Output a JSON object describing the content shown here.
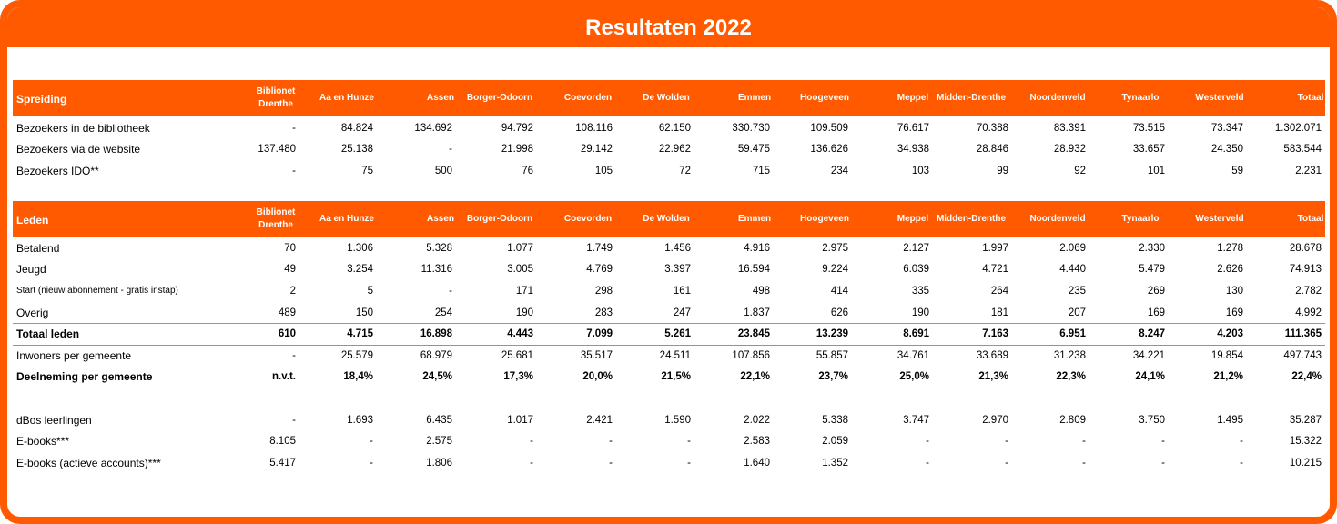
{
  "title": "Resultaten 2022",
  "table": {
    "columns": [
      "Biblionet\nDrenthe",
      "Aa en Hunze",
      "Assen",
      "Borger-Odoorn",
      "Coevorden",
      "De Wolden",
      "Emmen",
      "Hoogeveen",
      "Meppel",
      "Midden-Drenthe",
      "Noordenveld",
      "Tynaarlo",
      "Westerveld",
      "Totaal"
    ],
    "sections": [
      {
        "header": "Spreiding",
        "rows": [
          {
            "label": "Bezoekers in de bibliotheek",
            "values": [
              "-",
              "84.824",
              "134.692",
              "94.792",
              "108.116",
              "62.150",
              "330.730",
              "109.509",
              "76.617",
              "70.388",
              "83.391",
              "73.515",
              "73.347",
              "1.302.071"
            ]
          },
          {
            "label": "Bezoekers via de website",
            "values": [
              "137.480",
              "25.138",
              "-",
              "21.998",
              "29.142",
              "22.962",
              "59.475",
              "136.626",
              "34.938",
              "28.846",
              "28.932",
              "33.657",
              "24.350",
              "583.544"
            ]
          },
          {
            "label": "Bezoekers IDO**",
            "values": [
              "-",
              "75",
              "500",
              "76",
              "105",
              "72",
              "715",
              "234",
              "103",
              "99",
              "92",
              "101",
              "59",
              "2.231"
            ]
          }
        ]
      },
      {
        "header": "Leden",
        "rows": [
          {
            "label": "Betalend",
            "values": [
              "70",
              "1.306",
              "5.328",
              "1.077",
              "1.749",
              "1.456",
              "4.916",
              "2.975",
              "2.127",
              "1.997",
              "2.069",
              "2.330",
              "1.278",
              "28.678"
            ]
          },
          {
            "label": "Jeugd",
            "values": [
              "49",
              "3.254",
              "11.316",
              "3.005",
              "4.769",
              "3.397",
              "16.594",
              "9.224",
              "6.039",
              "4.721",
              "4.440",
              "5.479",
              "2.626",
              "74.913"
            ]
          },
          {
            "label": "Start (nieuw abonnement - gratis instap)",
            "small": true,
            "values": [
              "2",
              "5",
              "-",
              "171",
              "298",
              "161",
              "498",
              "414",
              "335",
              "264",
              "235",
              "269",
              "130",
              "2.782"
            ]
          },
          {
            "label": "Overig",
            "values": [
              "489",
              "150",
              "254",
              "190",
              "283",
              "247",
              "1.837",
              "626",
              "190",
              "181",
              "207",
              "169",
              "169",
              "4.992"
            ]
          },
          {
            "label": "Totaal leden",
            "bold": true,
            "values": [
              "610",
              "4.715",
              "16.898",
              "4.443",
              "7.099",
              "5.261",
              "23.845",
              "13.239",
              "8.691",
              "7.163",
              "6.951",
              "8.247",
              "4.203",
              "111.365"
            ]
          },
          {
            "label": "Inwoners per gemeente",
            "values": [
              "-",
              "25.579",
              "68.979",
              "25.681",
              "35.517",
              "24.511",
              "107.856",
              "55.857",
              "34.761",
              "33.689",
              "31.238",
              "34.221",
              "19.854",
              "497.743"
            ]
          },
          {
            "label": "Deelneming per gemeente",
            "bold": true,
            "values": [
              "n.v.t.",
              "18,4%",
              "24,5%",
              "17,3%",
              "20,0%",
              "21,5%",
              "22,1%",
              "23,7%",
              "25,0%",
              "21,3%",
              "22,3%",
              "24,1%",
              "21,2%",
              "22,4%"
            ]
          }
        ]
      },
      {
        "rows": [
          {
            "label": "dBos leerlingen",
            "values": [
              "-",
              "1.693",
              "6.435",
              "1.017",
              "2.421",
              "1.590",
              "2.022",
              "5.338",
              "3.747",
              "2.970",
              "2.809",
              "3.750",
              "1.495",
              "35.287"
            ]
          },
          {
            "label": "E-books***",
            "values": [
              "8.105",
              "-",
              "2.575",
              "-",
              "-",
              "-",
              "2.583",
              "2.059",
              "-",
              "-",
              "-",
              "-",
              "-",
              "15.322"
            ]
          },
          {
            "label": "E-books (actieve accounts)***",
            "values": [
              "5.417",
              "-",
              "1.806",
              "-",
              "-",
              "-",
              "1.640",
              "1.352",
              "-",
              "-",
              "-",
              "-",
              "-",
              "10.215"
            ]
          }
        ]
      }
    ]
  }
}
